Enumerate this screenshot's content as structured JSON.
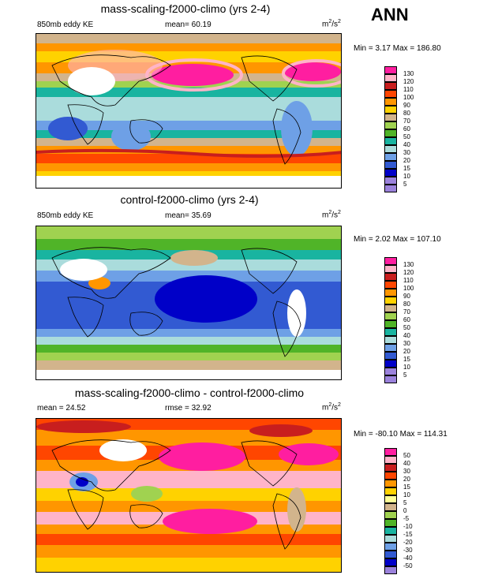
{
  "season": "ANN",
  "panels": [
    {
      "title": "mass-scaling-f2000-climo (yrs 2-4)",
      "left_label": "850mb eddy KE",
      "center_label": "mean=  60.19",
      "units_base": "m",
      "units_sup": "2",
      "units_tail": "/s",
      "units_sup2": "2",
      "minmax": "Min =   3.17 Max = 186.80",
      "legend_labels": [
        "130",
        "120",
        "110",
        "100",
        "90",
        "80",
        "70",
        "60",
        "50",
        "40",
        "30",
        "20",
        "15",
        "10",
        "5"
      ],
      "colors": [
        "#ff1ea0",
        "#ffb4c8",
        "#c81e1e",
        "#ff4600",
        "#ff9600",
        "#ffd200",
        "#d2b48c",
        "#a0d250",
        "#50b428",
        "#19b4a0",
        "#aadcdc",
        "#6ea0e6",
        "#325ad2",
        "#0000c8",
        "#9b82dc",
        "#9b82dc"
      ]
    },
    {
      "title": "control-f2000-climo (yrs 2-4)",
      "left_label": "850mb eddy KE",
      "center_label": "mean=  35.69",
      "units_base": "m",
      "units_sup": "2",
      "units_tail": "/s",
      "units_sup2": "2",
      "minmax": "Min =   2.02 Max = 107.10",
      "legend_labels": [
        "130",
        "120",
        "110",
        "100",
        "90",
        "80",
        "70",
        "60",
        "50",
        "40",
        "30",
        "20",
        "15",
        "10",
        "5"
      ],
      "colors": [
        "#ff1ea0",
        "#ffb4c8",
        "#c81e1e",
        "#ff4600",
        "#ff9600",
        "#ffd200",
        "#d2b48c",
        "#a0d250",
        "#50b428",
        "#19b4a0",
        "#aadcdc",
        "#6ea0e6",
        "#325ad2",
        "#0000c8",
        "#9b82dc",
        "#9b82dc"
      ]
    },
    {
      "title": "mass-scaling-f2000-climo - control-f2000-climo",
      "left_label": "mean =  24.52",
      "center_label": "rmse =  32.92",
      "units_base": "m",
      "units_sup": "2",
      "units_tail": "/s",
      "units_sup2": "2",
      "minmax": "Min = -80.10 Max = 114.31",
      "legend_labels": [
        "50",
        "40",
        "30",
        "20",
        "15",
        "10",
        "5",
        "0",
        "-5",
        "-10",
        "-15",
        "-20",
        "-30",
        "-40",
        "-50"
      ],
      "colors": [
        "#ff1ea0",
        "#ffb4c8",
        "#c81e1e",
        "#ff4600",
        "#ff9600",
        "#ffd200",
        "#ffff96",
        "#d2b48c",
        "#a0d250",
        "#50b428",
        "#19b4a0",
        "#aadcdc",
        "#6ea0e6",
        "#325ad2",
        "#0000c8",
        "#9b82dc"
      ]
    }
  ]
}
